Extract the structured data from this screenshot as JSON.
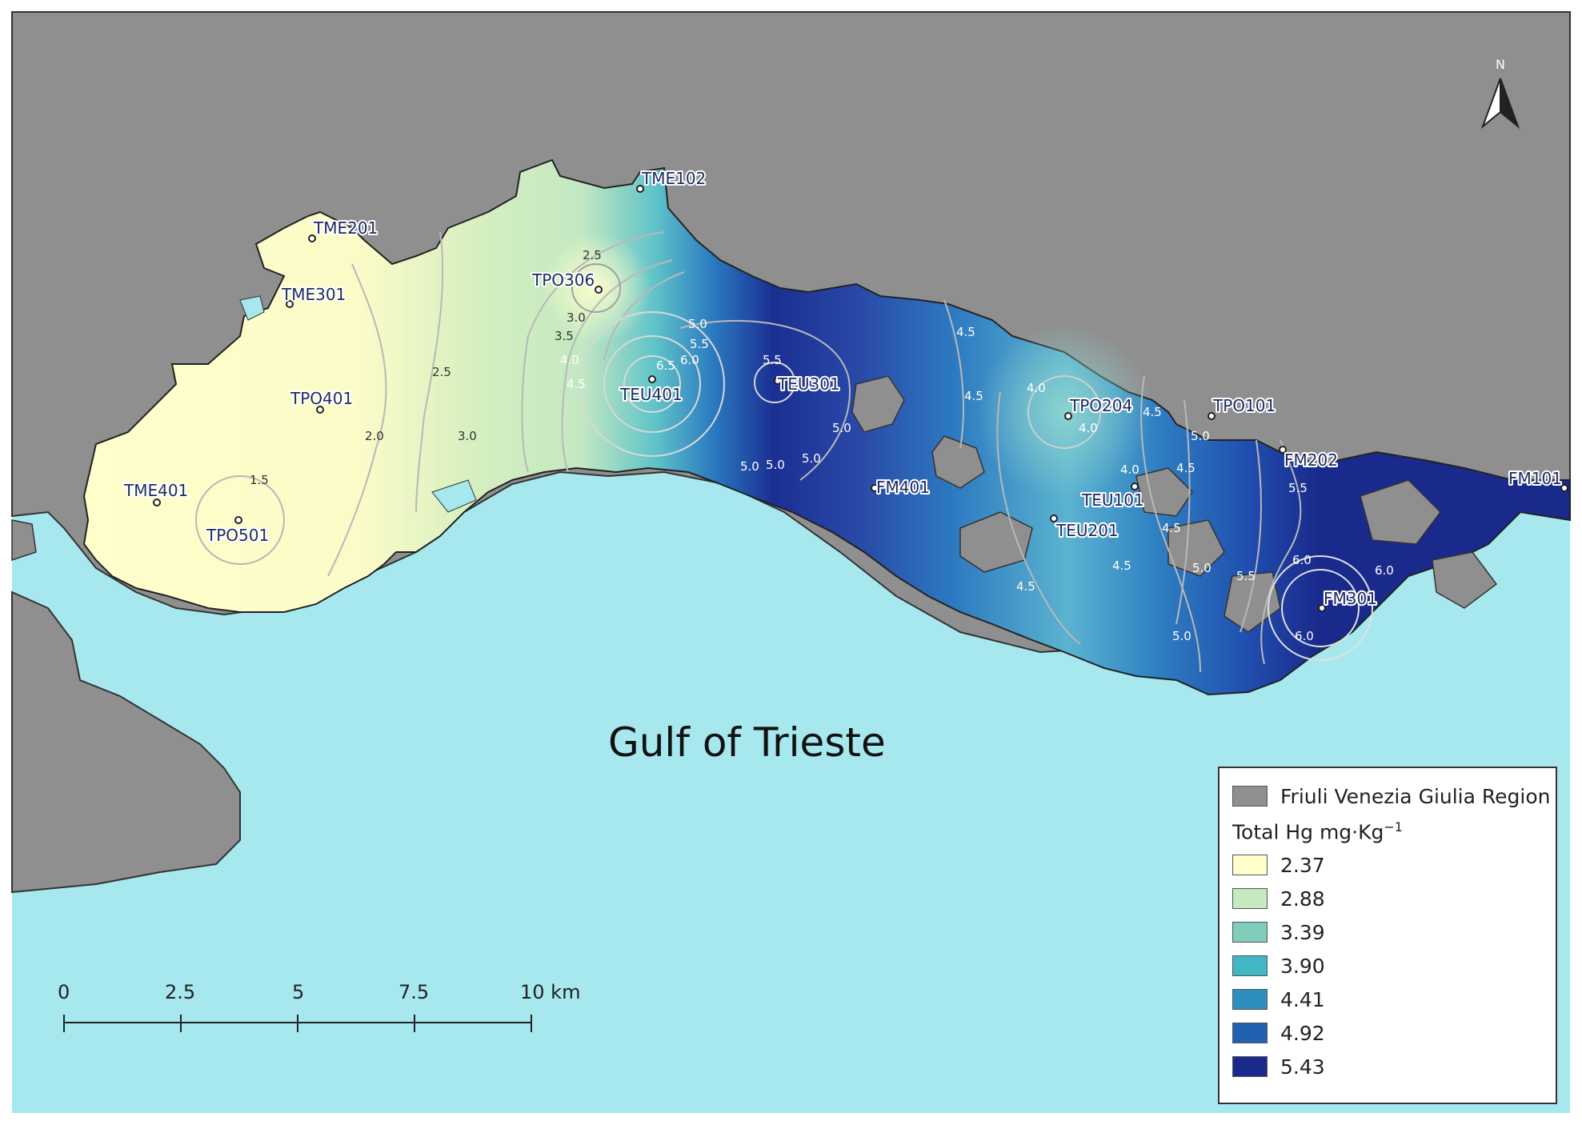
{
  "map": {
    "gulf_label": "Gulf of Trieste",
    "north_label": "N",
    "colors": {
      "sea": "#a6e8ee",
      "land": "#8f8f8f",
      "low": "#ffffcc",
      "high": "#1a2a8c"
    },
    "stations": [
      {
        "id": "TME102",
        "label": "TME102"
      },
      {
        "id": "TME201",
        "label": "TME201"
      },
      {
        "id": "TPO306",
        "label": "TPO306"
      },
      {
        "id": "TME301",
        "label": "TME301"
      },
      {
        "id": "TPO401",
        "label": "TPO401"
      },
      {
        "id": "TEU401",
        "label": "TEU401"
      },
      {
        "id": "TEU301",
        "label": "TEU301"
      },
      {
        "id": "TPO204",
        "label": "TPO204"
      },
      {
        "id": "TPO101",
        "label": "TPO101"
      },
      {
        "id": "FM202",
        "label": "FM202"
      },
      {
        "id": "FM101",
        "label": "FM101"
      },
      {
        "id": "TME401",
        "label": "TME401"
      },
      {
        "id": "TPO501",
        "label": "TPO501"
      },
      {
        "id": "FM401",
        "label": "FM401"
      },
      {
        "id": "TEU101",
        "label": "TEU101"
      },
      {
        "id": "TEU201",
        "label": "TEU201"
      },
      {
        "id": "FM301",
        "label": "FM301"
      }
    ],
    "contour_labels": [
      "2.5",
      "3.0",
      "3.5",
      "4.0",
      "4.5",
      "5.0",
      "5.5",
      "6.0",
      "6.5",
      "2.0",
      "1.5"
    ]
  },
  "scale_bar": {
    "ticks": [
      "0",
      "2.5",
      "5",
      "7.5",
      "10 km"
    ]
  },
  "legend": {
    "region_label": "Friuli Venezia Giulia Region",
    "region_color": "#8f8f8f",
    "title_main": "Total Hg mg·Kg",
    "title_sup": "−1",
    "classes": [
      {
        "label": "2.37",
        "color": "#ffffcc"
      },
      {
        "label": "2.88",
        "color": "#c7e9c0"
      },
      {
        "label": "3.39",
        "color": "#7fcdbb"
      },
      {
        "label": "3.90",
        "color": "#41b6c4"
      },
      {
        "label": "4.41",
        "color": "#2c8fc0"
      },
      {
        "label": "4.92",
        "color": "#2260b0"
      },
      {
        "label": "5.43",
        "color": "#1a2a8c"
      }
    ]
  }
}
